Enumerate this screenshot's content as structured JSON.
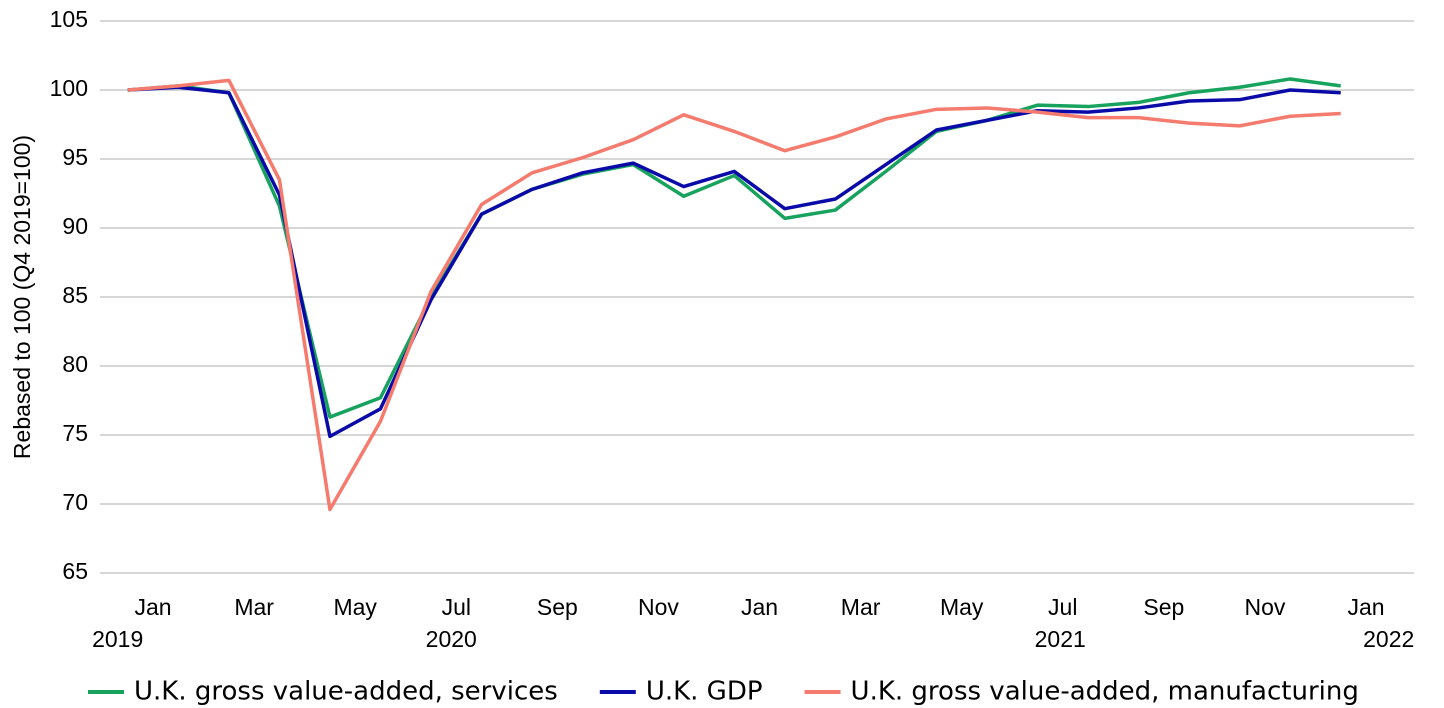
{
  "chart_data": {
    "type": "line",
    "y_label": "Rebased to 100 (Q4 2019=100)",
    "x": [
      0,
      1,
      2,
      3,
      4,
      5,
      6,
      7,
      8,
      9,
      10,
      11,
      12,
      13,
      14,
      15,
      16,
      17,
      18,
      19,
      20,
      21,
      22,
      23,
      24
    ],
    "xlim": [
      -0.55,
      25.45
    ],
    "xticks": [
      {
        "value": 0.5,
        "label": "Jan"
      },
      {
        "value": 2.5,
        "label": "Mar"
      },
      {
        "value": 4.5,
        "label": "May"
      },
      {
        "value": 6.5,
        "label": "Jul"
      },
      {
        "value": 8.5,
        "label": "Sep"
      },
      {
        "value": 10.5,
        "label": "Nov"
      },
      {
        "value": 12.5,
        "label": "Jan"
      },
      {
        "value": 14.5,
        "label": "Mar"
      },
      {
        "value": 16.5,
        "label": "May"
      },
      {
        "value": 18.5,
        "label": "Jul"
      },
      {
        "value": 20.5,
        "label": "Sep"
      },
      {
        "value": 22.5,
        "label": "Nov"
      },
      {
        "value": 24.5,
        "label": "Jan"
      }
    ],
    "year_labels": [
      {
        "value": -0.2,
        "label": "2019"
      },
      {
        "value": 6.4,
        "label": "2020"
      },
      {
        "value": 18.45,
        "label": "2021"
      },
      {
        "value": 24.95,
        "label": "2022"
      }
    ],
    "ylim": [
      65,
      105
    ],
    "yticks": [
      65,
      70,
      75,
      80,
      85,
      90,
      95,
      100,
      105
    ],
    "grid": true,
    "legend": "bottom",
    "series": [
      {
        "name": "U.K. gross value-added, services",
        "color": "#17a35e",
        "values": [
          100,
          100.3,
          99.8,
          91.6,
          76.3,
          77.7,
          85.0,
          91.0,
          92.8,
          93.9,
          94.6,
          92.3,
          93.8,
          90.7,
          91.3,
          94.1,
          97.0,
          97.8,
          98.9,
          98.8,
          99.1,
          99.8,
          100.2,
          100.8,
          100.3
        ]
      },
      {
        "name": "U.K. GDP",
        "color": "#0a0aa8",
        "values": [
          100,
          100.2,
          99.8,
          92.4,
          74.9,
          76.9,
          84.8,
          91.0,
          92.8,
          94.0,
          94.7,
          93.0,
          94.1,
          91.4,
          92.1,
          94.6,
          97.1,
          97.8,
          98.5,
          98.4,
          98.7,
          99.2,
          99.3,
          100.0,
          99.8
        ]
      },
      {
        "name": "U.K. gross value-added, manufacturing",
        "color": "#f47b6d",
        "values": [
          100,
          100.3,
          100.7,
          93.5,
          69.6,
          76.0,
          85.4,
          91.7,
          94.0,
          95.1,
          96.4,
          98.2,
          97.0,
          95.6,
          96.6,
          97.9,
          98.6,
          98.7,
          98.4,
          98.0,
          98.0,
          97.6,
          97.4,
          98.1,
          98.3
        ]
      }
    ]
  }
}
